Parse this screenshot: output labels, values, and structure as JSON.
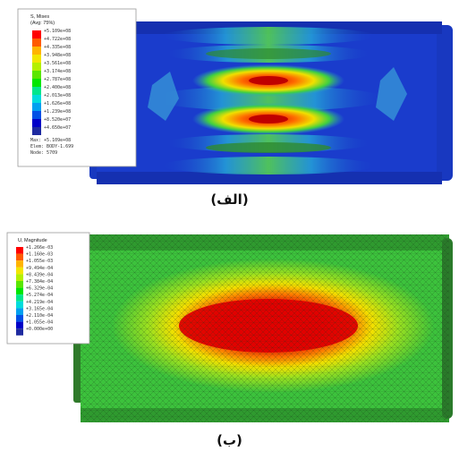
{
  "figure_a": {
    "caption": "(الف)",
    "legend_title_1": "S, Mises",
    "legend_title_2": "(Avg: 75%)",
    "legend_values": [
      "+5.109e+08",
      "+4.722e+08",
      "+4.335e+08",
      "+3.948e+08",
      "+3.561e+08",
      "+3.174e+08",
      "+2.787e+08",
      "+2.400e+08",
      "+2.013e+08",
      "+1.626e+08",
      "+1.239e+08",
      "+8.520e+07",
      "+4.650e+07"
    ],
    "legend_colors": [
      "#ff0000",
      "#ff5a00",
      "#ffb400",
      "#f2e600",
      "#b4f000",
      "#5ae600",
      "#00e600",
      "#00e68c",
      "#00dcdc",
      "#00a0f0",
      "#0050e6",
      "#0000c8",
      "#1e2aa0"
    ],
    "legend_footer": [
      "Max: +5.109e+08",
      "Elem: BODY-1.699",
      "Node: 5709"
    ]
  },
  "figure_b": {
    "caption": "(ب)",
    "legend_title_1": "U, Magnitude",
    "legend_values": [
      "+1.266e-03",
      "+1.160e-03",
      "+1.055e-03",
      "+9.494e-04",
      "+8.439e-04",
      "+7.384e-04",
      "+6.329e-04",
      "+5.274e-04",
      "+4.219e-04",
      "+3.165e-04",
      "+2.110e-04",
      "+1.055e-04",
      "+0.000e+00"
    ],
    "legend_colors": [
      "#ff0000",
      "#ff5a00",
      "#ffb400",
      "#f2e600",
      "#b4f000",
      "#5ae600",
      "#00e600",
      "#00e68c",
      "#00dcdc",
      "#00a0f0",
      "#0050e6",
      "#0000c8",
      "#1e2aa0"
    ]
  }
}
